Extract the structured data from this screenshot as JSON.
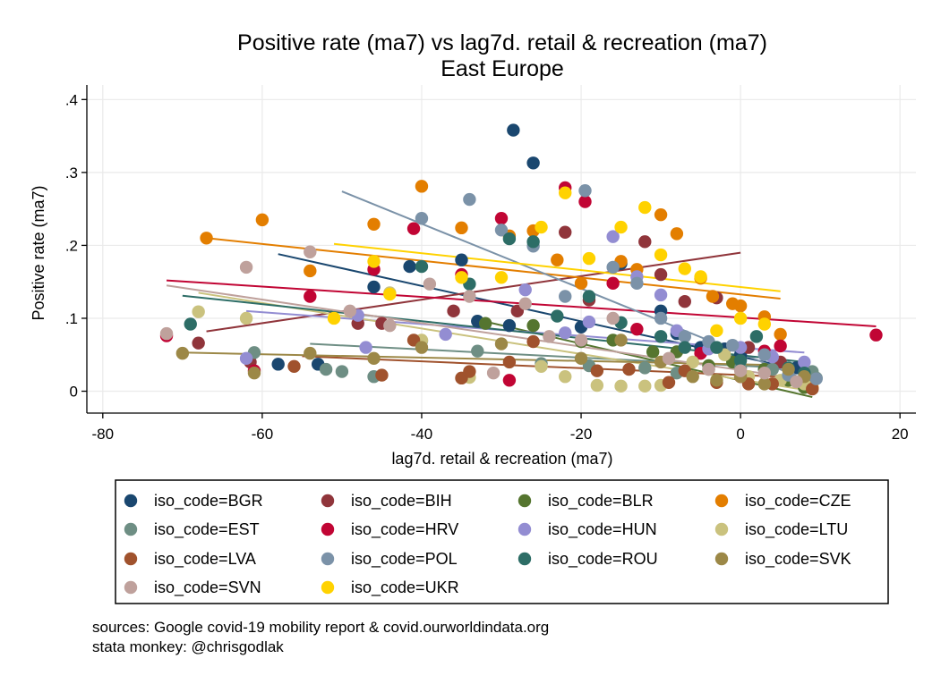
{
  "chart_data": {
    "type": "scatter",
    "title": "Positive rate (ma7) vs lag7d. retail & recreation (ma7)",
    "subtitle": "East Europe",
    "xlabel": "lag7d. retail & recreation (ma7)",
    "ylabel": "Positive rate (ma7)",
    "xlim": [
      -82,
      22
    ],
    "ylim": [
      -0.03,
      0.42
    ],
    "x_ticks": [
      {
        "value": -80,
        "label": "-80"
      },
      {
        "value": -60,
        "label": "-60"
      },
      {
        "value": -40,
        "label": "-40"
      },
      {
        "value": -20,
        "label": "-20"
      },
      {
        "value": 0,
        "label": "0"
      },
      {
        "value": 20,
        "label": "20"
      }
    ],
    "y_ticks": [
      {
        "value": 0,
        "label": "0"
      },
      {
        "value": 0.1,
        "label": ".1"
      },
      {
        "value": 0.2,
        "label": ".2"
      },
      {
        "value": 0.3,
        "label": ".3"
      },
      {
        "value": 0.4,
        "label": ".4"
      }
    ],
    "grid": true,
    "legend_position": "bottom",
    "notes": [
      "sources: Google covid-19 mobility report & covid.ourworldindata.org",
      "stata monkey: @chrisgodlak"
    ],
    "series": [
      {
        "name": "iso_code=BGR",
        "color": "#1a476f",
        "points": [
          [
            -28.5,
            0.358
          ],
          [
            -26,
            0.313
          ],
          [
            -58,
            0.037
          ],
          [
            -53,
            0.037
          ],
          [
            -46,
            0.143
          ],
          [
            -41.5,
            0.171
          ],
          [
            -35,
            0.18
          ],
          [
            -33,
            0.096
          ],
          [
            -29,
            0.09
          ],
          [
            -20,
            0.088
          ],
          [
            -15,
            0.175
          ],
          [
            -10,
            0.11
          ],
          [
            -8,
            0.079
          ],
          [
            -5,
            0.06
          ],
          [
            -2,
            0.058
          ],
          [
            0,
            0.05
          ],
          [
            3,
            0.03
          ],
          [
            7,
            0.032
          ],
          [
            9,
            0.02
          ]
        ],
        "fit": [
          [
            -58,
            0.188
          ],
          [
            8,
            0.028
          ]
        ]
      },
      {
        "name": "iso_code=BIH",
        "color": "#90353b",
        "points": [
          [
            -68,
            0.066
          ],
          [
            -61.5,
            0.04
          ],
          [
            -48,
            0.093
          ],
          [
            -45,
            0.093
          ],
          [
            -36,
            0.11
          ],
          [
            -28,
            0.11
          ],
          [
            -22,
            0.218
          ],
          [
            -19,
            0.125
          ],
          [
            -12,
            0.205
          ],
          [
            -10,
            0.16
          ],
          [
            -7,
            0.123
          ],
          [
            -3,
            0.128
          ],
          [
            1,
            0.06
          ],
          [
            5,
            0.04
          ],
          [
            8,
            0.01
          ]
        ],
        "fit": [
          [
            -67,
            0.082
          ],
          [
            0,
            0.19
          ]
        ]
      },
      {
        "name": "iso_code=BLR",
        "color": "#55752f",
        "points": [
          [
            -32,
            0.093
          ],
          [
            -26,
            0.09
          ],
          [
            -20,
            0.068
          ],
          [
            -16,
            0.07
          ],
          [
            -11,
            0.054
          ],
          [
            -8,
            0.054
          ],
          [
            -4,
            0.035
          ],
          [
            -1,
            0.04
          ],
          [
            3,
            0.03
          ],
          [
            6,
            0.015
          ],
          [
            8,
            0.005
          ]
        ],
        "fit": [
          [
            -33,
            0.098
          ],
          [
            9,
            -0.008
          ]
        ]
      },
      {
        "name": "iso_code=CZE",
        "color": "#e37e00",
        "points": [
          [
            -67,
            0.21
          ],
          [
            -60,
            0.235
          ],
          [
            -54,
            0.165
          ],
          [
            -46,
            0.229
          ],
          [
            -40,
            0.281
          ],
          [
            -35,
            0.224
          ],
          [
            -29,
            0.213
          ],
          [
            -26,
            0.22
          ],
          [
            -23,
            0.18
          ],
          [
            -20,
            0.148
          ],
          [
            -15,
            0.178
          ],
          [
            -13,
            0.167
          ],
          [
            -10,
            0.242
          ],
          [
            -8,
            0.216
          ],
          [
            -5,
            0.155
          ],
          [
            -3.5,
            0.13
          ],
          [
            0,
            0.117
          ],
          [
            3,
            0.102
          ],
          [
            5,
            0.078
          ],
          [
            -1,
            0.12
          ],
          [
            9,
            0.005
          ]
        ],
        "fit": [
          [
            -67,
            0.21
          ],
          [
            5,
            0.127
          ]
        ]
      },
      {
        "name": "iso_code=EST",
        "color": "#6e8e84",
        "points": [
          [
            -61,
            0.053
          ],
          [
            -52,
            0.03
          ],
          [
            -50,
            0.027
          ],
          [
            -46,
            0.02
          ],
          [
            -40,
            0.069
          ],
          [
            -33,
            0.055
          ],
          [
            -25,
            0.038
          ],
          [
            -19,
            0.035
          ],
          [
            -12,
            0.032
          ],
          [
            -8,
            0.025
          ],
          [
            -4,
            0.03
          ],
          [
            0,
            0.032
          ],
          [
            4,
            0.03
          ],
          [
            9,
            0.027
          ],
          [
            9.5,
            0.018
          ]
        ],
        "fit": [
          [
            -54,
            0.065
          ],
          [
            9,
            0.03
          ]
        ]
      },
      {
        "name": "iso_code=HRV",
        "color": "#c10534",
        "points": [
          [
            -72,
            0.076
          ],
          [
            -61,
            0.028
          ],
          [
            -54,
            0.13
          ],
          [
            -46,
            0.167
          ],
          [
            -41,
            0.223
          ],
          [
            -35,
            0.16
          ],
          [
            -30,
            0.237
          ],
          [
            -29,
            0.015
          ],
          [
            -22,
            0.279
          ],
          [
            -19.5,
            0.26
          ],
          [
            -16,
            0.148
          ],
          [
            -13,
            0.085
          ],
          [
            -5,
            0.052
          ],
          [
            0,
            0.02
          ],
          [
            3,
            0.055
          ],
          [
            5,
            0.062
          ],
          [
            17,
            0.077
          ]
        ],
        "fit": [
          [
            -72,
            0.152
          ],
          [
            17,
            0.089
          ]
        ]
      },
      {
        "name": "iso_code=HUN",
        "color": "#938dd2",
        "points": [
          [
            -62,
            0.045
          ],
          [
            -48,
            0.104
          ],
          [
            -47,
            0.06
          ],
          [
            -37,
            0.078
          ],
          [
            -27,
            0.139
          ],
          [
            -22,
            0.08
          ],
          [
            -19,
            0.095
          ],
          [
            -16,
            0.212
          ],
          [
            -13,
            0.157
          ],
          [
            -10,
            0.132
          ],
          [
            -8,
            0.083
          ],
          [
            -4,
            0.058
          ],
          [
            0,
            0.06
          ],
          [
            4,
            0.047
          ],
          [
            8,
            0.04
          ]
        ],
        "fit": [
          [
            -62,
            0.11
          ],
          [
            8,
            0.053
          ]
        ]
      },
      {
        "name": "iso_code=LTU",
        "color": "#cac27e",
        "points": [
          [
            -68,
            0.109
          ],
          [
            -62,
            0.1
          ],
          [
            -44,
            0.135
          ],
          [
            -40,
            0.07
          ],
          [
            -34,
            0.019
          ],
          [
            -25,
            0.034
          ],
          [
            -22,
            0.02
          ],
          [
            -18,
            0.008
          ],
          [
            -15,
            0.007
          ],
          [
            -12,
            0.007
          ],
          [
            -10,
            0.008
          ],
          [
            -6,
            0.04
          ],
          [
            -2,
            0.05
          ],
          [
            1,
            0.02
          ],
          [
            5,
            0.015
          ],
          [
            8,
            0.01
          ]
        ],
        "fit": [
          [
            -68,
            0.135
          ],
          [
            8,
            0.002
          ]
        ]
      },
      {
        "name": "iso_code=LVA",
        "color": "#a0522d",
        "points": [
          [
            -56,
            0.034
          ],
          [
            -45,
            0.022
          ],
          [
            -41,
            0.07
          ],
          [
            -35,
            0.018
          ],
          [
            -34,
            0.027
          ],
          [
            -29,
            0.04
          ],
          [
            -26,
            0.068
          ],
          [
            -18,
            0.028
          ],
          [
            -14,
            0.03
          ],
          [
            -9,
            0.012
          ],
          [
            -7,
            0.028
          ],
          [
            -3,
            0.012
          ],
          [
            1,
            0.01
          ],
          [
            4,
            0.01
          ],
          [
            9,
            0.003
          ]
        ],
        "fit": [
          [
            -55,
            0.048
          ],
          [
            9,
            0.018
          ]
        ]
      },
      {
        "name": "iso_code=POL",
        "color": "#7b92a8",
        "points": [
          [
            -40,
            0.237
          ],
          [
            -34,
            0.263
          ],
          [
            -30,
            0.221
          ],
          [
            -26,
            0.199
          ],
          [
            -22,
            0.13
          ],
          [
            -19.5,
            0.275
          ],
          [
            -16,
            0.17
          ],
          [
            -13,
            0.148
          ],
          [
            -10,
            0.1
          ],
          [
            -7,
            0.075
          ],
          [
            -4,
            0.068
          ],
          [
            -1,
            0.063
          ],
          [
            3,
            0.05
          ],
          [
            6,
            0.022
          ],
          [
            9.5,
            0.017
          ]
        ],
        "fit": [
          [
            -50,
            0.274
          ],
          [
            9,
            0.012
          ]
        ]
      },
      {
        "name": "iso_code=ROU",
        "color": "#2d6d66",
        "points": [
          [
            -69,
            0.092
          ],
          [
            -40,
            0.171
          ],
          [
            -34,
            0.147
          ],
          [
            -29,
            0.209
          ],
          [
            -26,
            0.205
          ],
          [
            -23,
            0.103
          ],
          [
            -19,
            0.13
          ],
          [
            -15,
            0.094
          ],
          [
            -10,
            0.075
          ],
          [
            -7,
            0.06
          ],
          [
            -3,
            0.06
          ],
          [
            0,
            0.042
          ],
          [
            2,
            0.075
          ],
          [
            6,
            0.032
          ],
          [
            8,
            0.025
          ]
        ],
        "fit": [
          [
            -70,
            0.131
          ],
          [
            8,
            0.04
          ]
        ]
      },
      {
        "name": "iso_code=SVK",
        "color": "#9c8847",
        "points": [
          [
            -70,
            0.052
          ],
          [
            -61,
            0.025
          ],
          [
            -54,
            0.052
          ],
          [
            -46,
            0.045
          ],
          [
            -40,
            0.06
          ],
          [
            -30,
            0.065
          ],
          [
            -20,
            0.045
          ],
          [
            -15,
            0.07
          ],
          [
            -10,
            0.04
          ],
          [
            -6,
            0.02
          ],
          [
            -3,
            0.015
          ],
          [
            0,
            0.02
          ],
          [
            3,
            0.01
          ],
          [
            6,
            0.03
          ],
          [
            8,
            0.02
          ]
        ],
        "fit": [
          [
            -70,
            0.053
          ],
          [
            8,
            0.035
          ]
        ]
      },
      {
        "name": "iso_code=SVN",
        "color": "#bfa19c",
        "points": [
          [
            -72,
            0.079
          ],
          [
            -62,
            0.17
          ],
          [
            -54,
            0.191
          ],
          [
            -49,
            0.11
          ],
          [
            -44,
            0.09
          ],
          [
            -39,
            0.147
          ],
          [
            -34,
            0.13
          ],
          [
            -31,
            0.025
          ],
          [
            -27,
            0.12
          ],
          [
            -24,
            0.075
          ],
          [
            -20,
            0.07
          ],
          [
            -16,
            0.1
          ],
          [
            -9,
            0.045
          ],
          [
            -4,
            0.03
          ],
          [
            0,
            0.028
          ],
          [
            3,
            0.025
          ],
          [
            7,
            0.013
          ]
        ],
        "fit": [
          [
            -72,
            0.145
          ],
          [
            8,
            0.016
          ]
        ]
      },
      {
        "name": "iso_code=UKR",
        "color": "#ffd200",
        "points": [
          [
            -51,
            0.1
          ],
          [
            -46,
            0.178
          ],
          [
            -44,
            0.133
          ],
          [
            -35,
            0.156
          ],
          [
            -30,
            0.156
          ],
          [
            -25,
            0.225
          ],
          [
            -22,
            0.272
          ],
          [
            -19,
            0.182
          ],
          [
            -15,
            0.225
          ],
          [
            -12,
            0.252
          ],
          [
            -10,
            0.187
          ],
          [
            -7,
            0.168
          ],
          [
            -5,
            0.157
          ],
          [
            -3,
            0.083
          ],
          [
            0,
            0.1
          ],
          [
            3,
            0.092
          ]
        ],
        "fit": [
          [
            -51,
            0.202
          ],
          [
            5,
            0.137
          ]
        ]
      }
    ]
  }
}
